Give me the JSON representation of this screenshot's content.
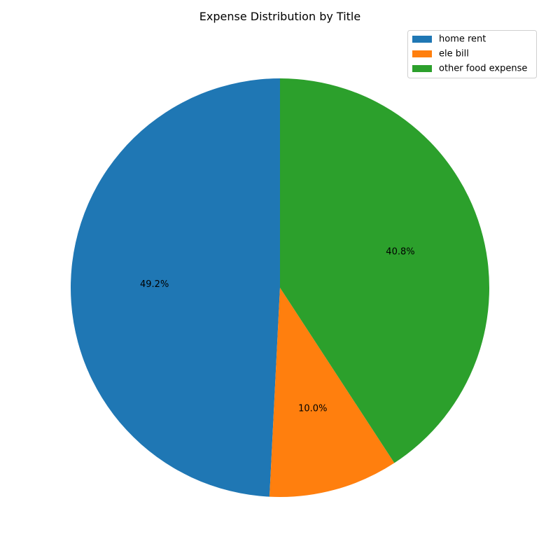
{
  "chart_data": {
    "type": "pie",
    "title": "Expense Distribution by Title",
    "categories": [
      "home rent",
      "ele bill",
      "other food expense"
    ],
    "values": [
      49.2,
      10.0,
      40.8
    ],
    "value_labels": [
      "49.2%",
      "10.0%",
      "40.8%"
    ],
    "colors": [
      "#1f77b4",
      "#ff7f0e",
      "#2ca02c"
    ],
    "start_angle_deg": 90,
    "direction": "counterclockwise",
    "legend_position": "top-right"
  }
}
